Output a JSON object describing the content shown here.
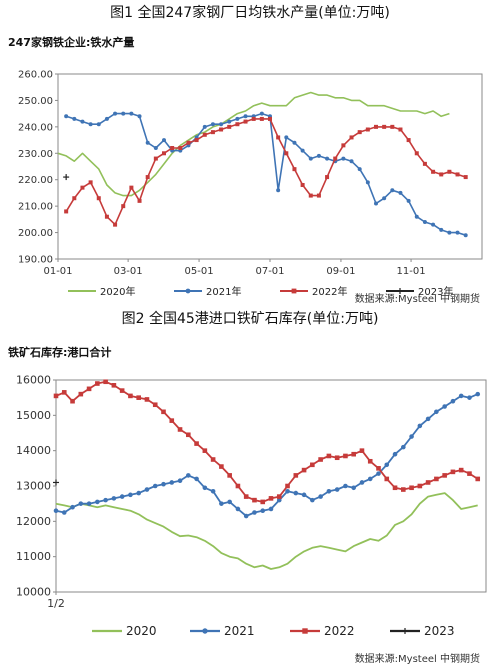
{
  "chart_data": [
    {
      "type": "line",
      "figure_title": "图1 全国247家钢厂日均铁水产量(单位:万吨)",
      "subtitle": "247家钢铁企业:铁水产量",
      "source": "数据来源:Mysteel 中钢期货",
      "x_ticks": [
        "01-01",
        "03-01",
        "05-01",
        "07-01",
        "09-01",
        "11-01"
      ],
      "x_range": [
        0,
        52
      ],
      "ylim": [
        190,
        260
      ],
      "y_ticks": [
        "190.00",
        "200.00",
        "210.00",
        "220.00",
        "230.00",
        "240.00",
        "250.00",
        "260.00"
      ],
      "grid": false,
      "legend_position": "bottom",
      "series": [
        {
          "name": "2020年",
          "color": "#92c05a",
          "marker": "none",
          "x": [
            0,
            1,
            2,
            3,
            4,
            5,
            6,
            7,
            8,
            9,
            10,
            11,
            12,
            13,
            14,
            15,
            16,
            17,
            18,
            19,
            20,
            21,
            22,
            23,
            24,
            25,
            26,
            27,
            28,
            29,
            30,
            31,
            32,
            33,
            34,
            35,
            36,
            37,
            38,
            39,
            40,
            41,
            42,
            43,
            44,
            45,
            46,
            47,
            48
          ],
          "values": [
            230,
            229,
            227,
            230,
            227,
            224,
            218,
            215,
            214,
            214,
            216,
            219,
            222,
            226,
            230,
            233,
            235,
            237,
            238,
            240,
            241,
            243,
            245,
            246,
            248,
            249,
            248,
            248,
            248,
            251,
            252,
            253,
            252,
            252,
            251,
            251,
            250,
            250,
            248,
            248,
            248,
            247,
            246,
            246,
            246,
            245,
            246,
            244,
            245
          ]
        },
        {
          "name": "2021年",
          "color": "#3f74b5",
          "marker": "circle",
          "x": [
            1,
            2,
            3,
            4,
            5,
            6,
            7,
            8,
            9,
            10,
            11,
            12,
            13,
            14,
            15,
            16,
            17,
            18,
            19,
            20,
            21,
            22,
            23,
            24,
            25,
            26,
            27,
            28,
            29,
            30,
            31,
            32,
            33,
            34,
            35,
            36,
            37,
            38,
            39,
            40,
            41,
            42,
            43,
            44,
            45,
            46,
            47,
            48,
            49,
            50
          ],
          "values": [
            244,
            243,
            242,
            241,
            241,
            243,
            245,
            245,
            245,
            244,
            234,
            232,
            235,
            231,
            231,
            233,
            236,
            240,
            241,
            241,
            242,
            243,
            244,
            244,
            245,
            244,
            216,
            236,
            234,
            231,
            228,
            229,
            228,
            227,
            228,
            227,
            224,
            219,
            211,
            213,
            216,
            215,
            212,
            206,
            204,
            203,
            201,
            200,
            200,
            199
          ]
        },
        {
          "name": "2022年",
          "color": "#c63b3a",
          "marker": "square",
          "x": [
            1,
            2,
            3,
            4,
            5,
            6,
            7,
            8,
            9,
            10,
            11,
            12,
            13,
            14,
            15,
            16,
            17,
            18,
            19,
            20,
            21,
            22,
            23,
            24,
            25,
            26,
            27,
            28,
            29,
            30,
            31,
            32,
            33,
            34,
            35,
            36,
            37,
            38,
            39,
            40,
            41,
            42,
            43,
            44,
            45,
            46,
            47,
            48,
            49,
            50
          ],
          "values": [
            208,
            213,
            217,
            219,
            213,
            206,
            203,
            210,
            217,
            212,
            221,
            228,
            230,
            232,
            232,
            234,
            235,
            237,
            238,
            239,
            240,
            241,
            242,
            243,
            243,
            243,
            236,
            230,
            224,
            218,
            214,
            214,
            221,
            228,
            233,
            236,
            238,
            239,
            240,
            240,
            240,
            239,
            235,
            230,
            226,
            223,
            222,
            223,
            222,
            221
          ]
        },
        {
          "name": "2023年",
          "color": "#222222",
          "marker": "cross",
          "x": [
            1
          ],
          "values": [
            221
          ]
        }
      ]
    },
    {
      "type": "line",
      "figure_title": "图2 全国45港进口铁矿石库存(单位:万吨)",
      "subtitle": "铁矿石库存:港口合计",
      "source": "数据来源:Mysteel 中钢期货",
      "x_ticks": [
        "1/2"
      ],
      "x_range": [
        0,
        52
      ],
      "ylim": [
        10000,
        16000
      ],
      "y_ticks": [
        "10000",
        "11000",
        "12000",
        "13000",
        "14000",
        "15000",
        "16000"
      ],
      "grid": false,
      "legend_position": "bottom",
      "series": [
        {
          "name": "2020",
          "color": "#92c05a",
          "marker": "none",
          "x": [
            0,
            1,
            2,
            3,
            4,
            5,
            6,
            7,
            8,
            9,
            10,
            11,
            12,
            13,
            14,
            15,
            16,
            17,
            18,
            19,
            20,
            21,
            22,
            23,
            24,
            25,
            26,
            27,
            28,
            29,
            30,
            31,
            32,
            33,
            34,
            35,
            36,
            37,
            38,
            39,
            40,
            41,
            42,
            43,
            44,
            45,
            46,
            47,
            48,
            49,
            50,
            51
          ],
          "values": [
            12500,
            12450,
            12400,
            12500,
            12450,
            12400,
            12450,
            12400,
            12350,
            12300,
            12200,
            12050,
            11950,
            11850,
            11700,
            11580,
            11600,
            11550,
            11450,
            11300,
            11100,
            11000,
            10950,
            10800,
            10700,
            10750,
            10650,
            10700,
            10800,
            11000,
            11150,
            11250,
            11300,
            11250,
            11200,
            11150,
            11300,
            11400,
            11500,
            11450,
            11600,
            11900,
            12000,
            12200,
            12500,
            12700,
            12750,
            12800,
            12600,
            12350,
            12400,
            12450
          ]
        },
        {
          "name": "2021",
          "color": "#3f74b5",
          "marker": "circle",
          "x": [
            0,
            1,
            2,
            3,
            4,
            5,
            6,
            7,
            8,
            9,
            10,
            11,
            12,
            13,
            14,
            15,
            16,
            17,
            18,
            19,
            20,
            21,
            22,
            23,
            24,
            25,
            26,
            27,
            28,
            29,
            30,
            31,
            32,
            33,
            34,
            35,
            36,
            37,
            38,
            39,
            40,
            41,
            42,
            43,
            44,
            45,
            46,
            47,
            48,
            49,
            50,
            51
          ],
          "values": [
            12300,
            12250,
            12400,
            12500,
            12500,
            12550,
            12600,
            12650,
            12700,
            12750,
            12800,
            12900,
            13000,
            13050,
            13100,
            13150,
            13300,
            13200,
            12950,
            12850,
            12500,
            12550,
            12350,
            12150,
            12250,
            12300,
            12350,
            12600,
            12850,
            12800,
            12750,
            12600,
            12700,
            12850,
            12900,
            13000,
            12950,
            13100,
            13200,
            13350,
            13600,
            13900,
            14100,
            14400,
            14700,
            14900,
            15100,
            15250,
            15400,
            15550,
            15500,
            15600
          ]
        },
        {
          "name": "2022",
          "color": "#c63b3a",
          "marker": "square",
          "x": [
            0,
            1,
            2,
            3,
            4,
            5,
            6,
            7,
            8,
            9,
            10,
            11,
            12,
            13,
            14,
            15,
            16,
            17,
            18,
            19,
            20,
            21,
            22,
            23,
            24,
            25,
            26,
            27,
            28,
            29,
            30,
            31,
            32,
            33,
            34,
            35,
            36,
            37,
            38,
            39,
            40,
            41,
            42,
            43,
            44,
            45,
            46,
            47,
            48,
            49,
            50,
            51
          ],
          "values": [
            15550,
            15650,
            15400,
            15600,
            15750,
            15900,
            15950,
            15850,
            15700,
            15550,
            15500,
            15450,
            15300,
            15100,
            14850,
            14600,
            14450,
            14200,
            14000,
            13750,
            13550,
            13300,
            13000,
            12700,
            12600,
            12550,
            12650,
            12700,
            13000,
            13300,
            13450,
            13600,
            13750,
            13850,
            13800,
            13850,
            13900,
            14000,
            13700,
            13500,
            13200,
            12950,
            12900,
            12950,
            13000,
            13100,
            13200,
            13300,
            13400,
            13450,
            13350,
            13200
          ]
        },
        {
          "name": "2023",
          "color": "#222222",
          "marker": "cross",
          "x": [
            0
          ],
          "values": [
            13100
          ]
        }
      ]
    }
  ]
}
